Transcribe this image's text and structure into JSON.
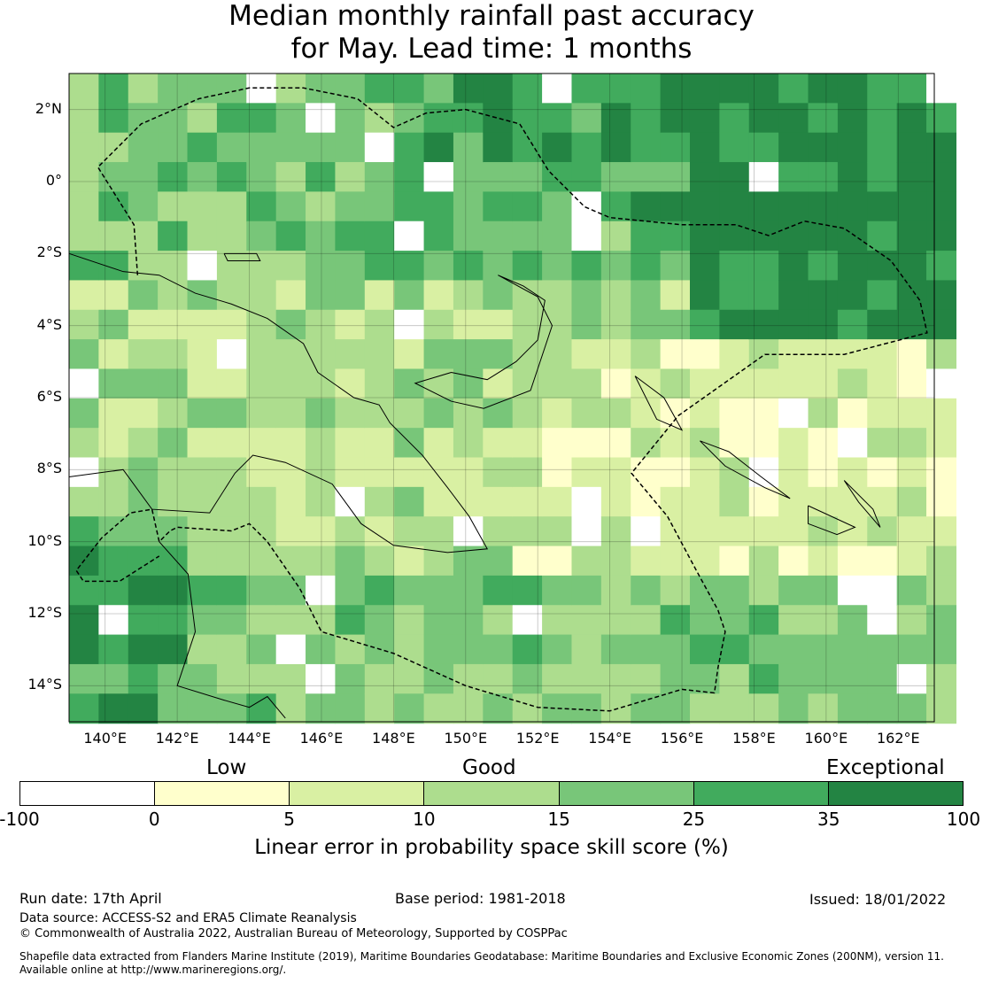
{
  "title": {
    "line1": "Median monthly rainfall past accuracy",
    "line2": "for May. Lead time: 1 months"
  },
  "map": {
    "lat_labels": [
      "2°N",
      "0°",
      "2°S",
      "4°S",
      "6°S",
      "8°S",
      "10°S",
      "12°S",
      "14°S"
    ],
    "lon_labels": [
      "140°E",
      "142°E",
      "144°E",
      "146°E",
      "148°E",
      "150°E",
      "152°E",
      "154°E",
      "156°E",
      "158°E",
      "160°E",
      "162°E"
    ],
    "lon_range": [
      139,
      163
    ],
    "lat_range": [
      -15,
      3
    ]
  },
  "legend": {
    "categories": [
      "Low",
      "Good",
      "Exceptional"
    ],
    "ticks": [
      "-100",
      "0",
      "5",
      "10",
      "15",
      "25",
      "35",
      "100"
    ],
    "colors": [
      "#ffffff",
      "#ffffcc",
      "#d9f0a3",
      "#addd8e",
      "#78c679",
      "#41ab5d",
      "#238443"
    ],
    "label": "Linear error in probability space skill score (%)"
  },
  "footer": {
    "run_date": "Run date: 17th April",
    "base_period": "Base period: 1981-2018",
    "issued": "Issued: 18/01/2022",
    "data_source": "Data source: ACCESS-S2 and ERA5 Climate Reanalysis",
    "copyright": "© Commonwealth of Australia 2022, Australian Bureau of Meteorology, Supported by COSPPac",
    "shapefile_line1": "Shapefile data extracted from Flanders Marine Institute (2019), Maritime Boundaries Geodatabase: Maritime Boundaries and Exclusive Economic Zones (200NM), version 11.",
    "shapefile_line2": "Available online at http://www.marineregions.org/."
  }
}
